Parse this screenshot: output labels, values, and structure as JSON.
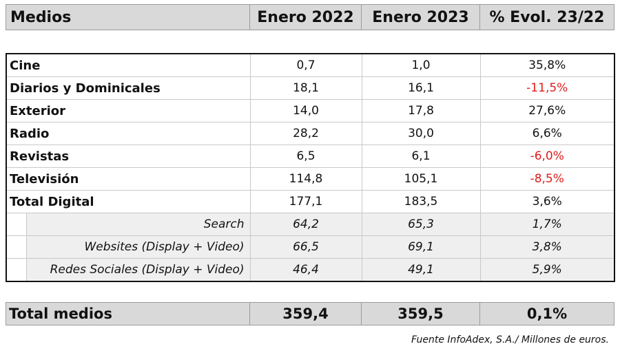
{
  "header": {
    "col_medios": "Medios",
    "col_2022": "Enero 2022",
    "col_2023": "Enero 2023",
    "col_evol": "% Evol. 23/22"
  },
  "rows": [
    {
      "label": "Cine",
      "v2022": "0,7",
      "v2023": "1,0",
      "evol": "35,8%",
      "negative": false
    },
    {
      "label": "Diarios y Dominicales",
      "v2022": "18,1",
      "v2023": "16,1",
      "evol": "-11,5%",
      "negative": true
    },
    {
      "label": "Exterior",
      "v2022": "14,0",
      "v2023": "17,8",
      "evol": "27,6%",
      "negative": false
    },
    {
      "label": "Radio",
      "v2022": "28,2",
      "v2023": "30,0",
      "evol": "6,6%",
      "negative": false
    },
    {
      "label": "Revistas",
      "v2022": "6,5",
      "v2023": "6,1",
      "evol": "-6,0%",
      "negative": true
    },
    {
      "label": "Televisión",
      "v2022": "114,8",
      "v2023": "105,1",
      "evol": "-8,5%",
      "negative": true
    },
    {
      "label": "Total Digital",
      "v2022": "177,1",
      "v2023": "183,5",
      "evol": "3,6%",
      "negative": false
    }
  ],
  "sub_rows": [
    {
      "label": "Search",
      "v2022": "64,2",
      "v2023": "65,3",
      "evol": "1,7%"
    },
    {
      "label": "Websites (Display + Video)",
      "v2022": "66,5",
      "v2023": "69,1",
      "evol": "3,8%"
    },
    {
      "label": "Redes Sociales (Display + Video)",
      "v2022": "46,4",
      "v2023": "49,1",
      "evol": "5,9%"
    }
  ],
  "total": {
    "label": "Total medios",
    "v2022": "359,4",
    "v2023": "359,5",
    "evol": "0,1%"
  },
  "source": "Fuente InfoAdex, S.A./ Millones de euros.",
  "colors": {
    "header_bg": "#d9d9d9",
    "negative": "#e01b1b",
    "sub_bg": "#efefef"
  }
}
